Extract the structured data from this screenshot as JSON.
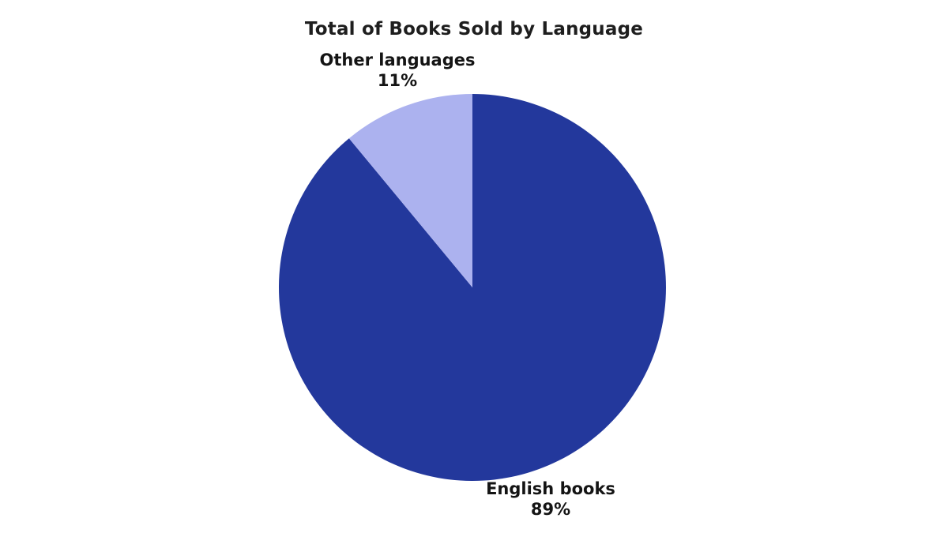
{
  "page": {
    "background": "#ffffff"
  },
  "chart_data": {
    "type": "pie",
    "title": "Total of Books Sold by Language",
    "slices": [
      {
        "label": "English books",
        "value": 89,
        "pct_label": "89%",
        "color": "#23389C"
      },
      {
        "label": "Other languages",
        "value": 11,
        "pct_label": "11%",
        "color": "#ACB2EF"
      }
    ],
    "start_angle_deg": 0,
    "direction": "clockwise",
    "legend": "none",
    "labels_position": "outside",
    "title_color": "#1E1E1E",
    "label_color": "#141414"
  }
}
